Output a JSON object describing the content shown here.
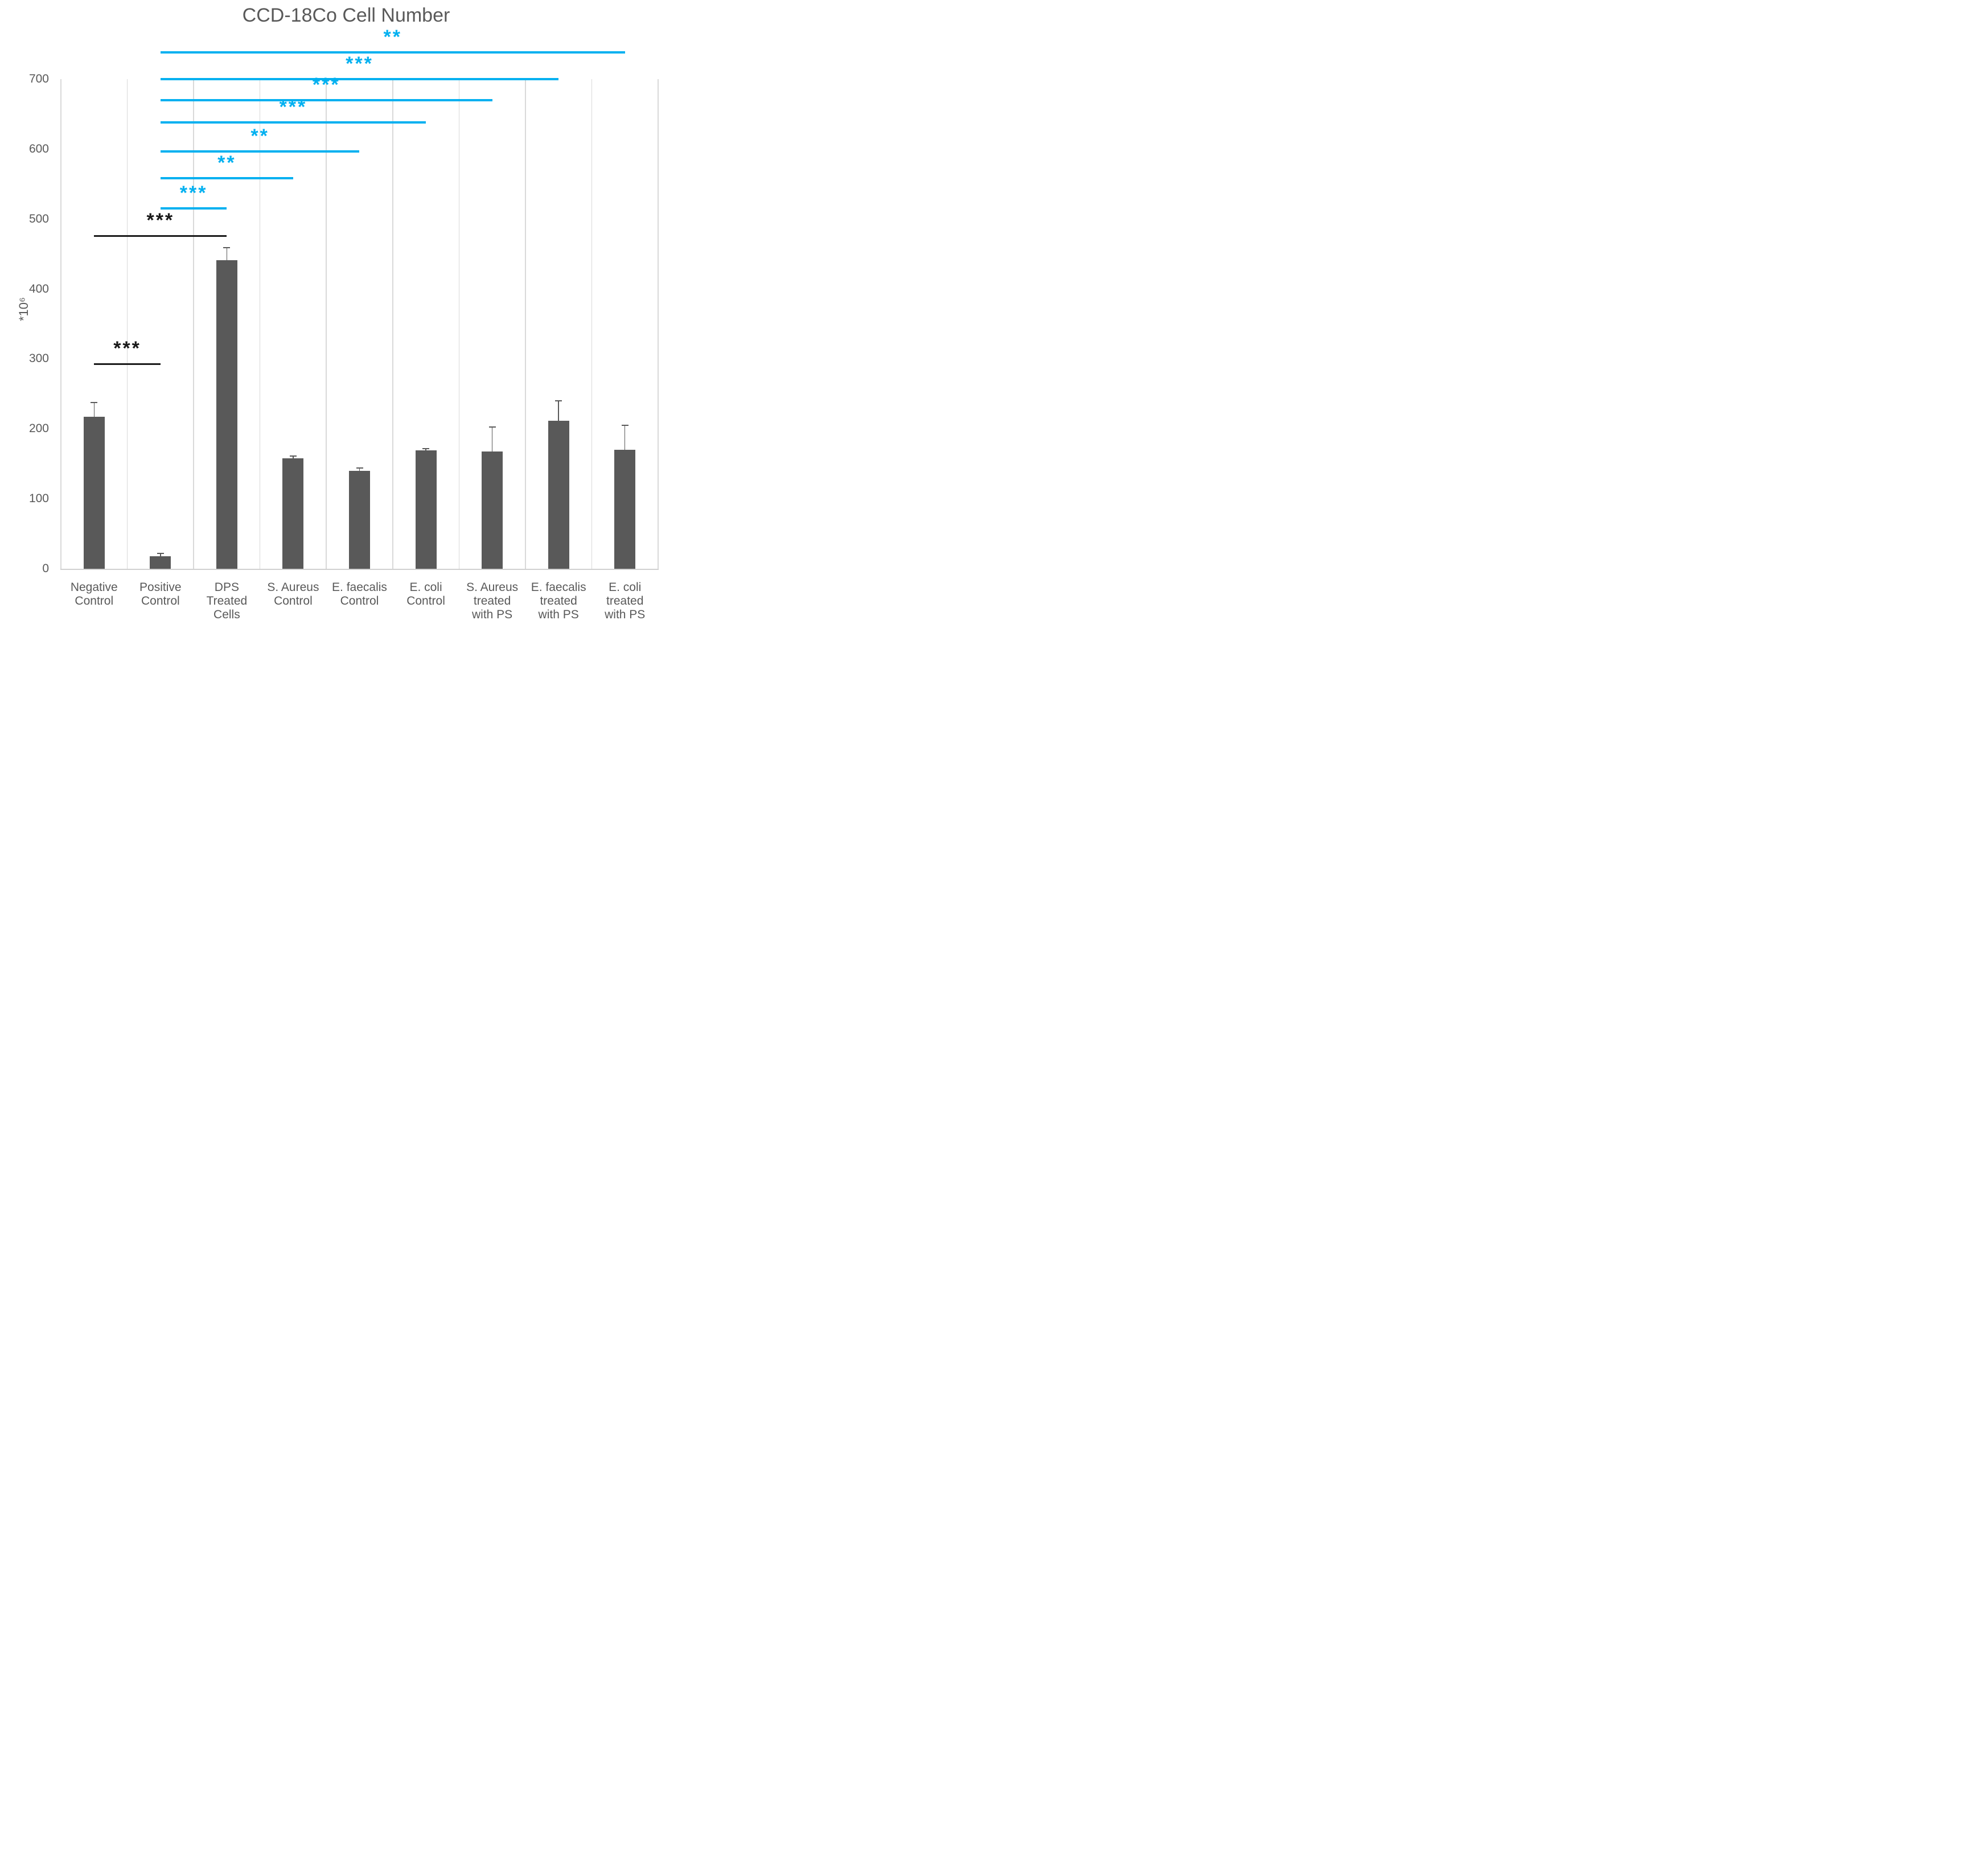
{
  "title": "CCD-18Co Cell Number",
  "chart_data": {
    "type": "bar",
    "title": "CCD-18Co Cell Number",
    "ylabel": "*10⁶",
    "xlabel": "",
    "ylim": [
      0,
      700
    ],
    "yticks": [
      0,
      100,
      200,
      300,
      400,
      500,
      600,
      700
    ],
    "grid": "vertical-category-separators-only",
    "legend": "none",
    "categories": [
      "Negative\nControl",
      "Positive\nControl",
      "DPS\nTreated\nCells",
      "S. Aureus\nControl",
      "E. faecalis\nControl",
      "E. coli\nControl",
      "S. Aureus\ntreated\nwith PS",
      "E. faecalis\ntreated\nwith PS",
      "E. coli\ntreated\nwith PS"
    ],
    "values": [
      217,
      18,
      441,
      158,
      140,
      169,
      168,
      212,
      170
    ],
    "errors_plus": [
      21,
      4,
      18,
      3,
      4,
      3,
      35,
      28,
      35
    ],
    "significance_brackets": [
      {
        "from": 0,
        "to": 1,
        "level": 293,
        "stars": "***",
        "color_key": "black"
      },
      {
        "from": 0,
        "to": 2,
        "level": 476,
        "stars": "***",
        "color_key": "black"
      },
      {
        "from": 1,
        "to": 2,
        "level": 515,
        "stars": "***",
        "color_key": "cyan"
      },
      {
        "from": 1,
        "to": 3,
        "level": 558,
        "stars": "**",
        "color_key": "cyan"
      },
      {
        "from": 1,
        "to": 4,
        "level": 597,
        "stars": "**",
        "color_key": "cyan"
      },
      {
        "from": 1,
        "to": 5,
        "level": 638,
        "stars": "***",
        "color_key": "cyan"
      },
      {
        "from": 1,
        "to": 6,
        "level": 670,
        "stars": "***",
        "color_key": "cyan"
      },
      {
        "from": 1,
        "to": 7,
        "level": 700,
        "stars": "***",
        "color_key": "cyan"
      },
      {
        "from": 1,
        "to": 8,
        "level": 738,
        "stars": "**",
        "color_key": "cyan"
      }
    ],
    "colors": {
      "bar": "#595959",
      "error_bar": "#595959",
      "gridline": "#d9d9d9",
      "axis_line": "#d0d0d0",
      "text": "#595959",
      "sig_black": "#1a1a1a",
      "sig_cyan": "#00b0f0",
      "background": "#ffffff"
    }
  }
}
